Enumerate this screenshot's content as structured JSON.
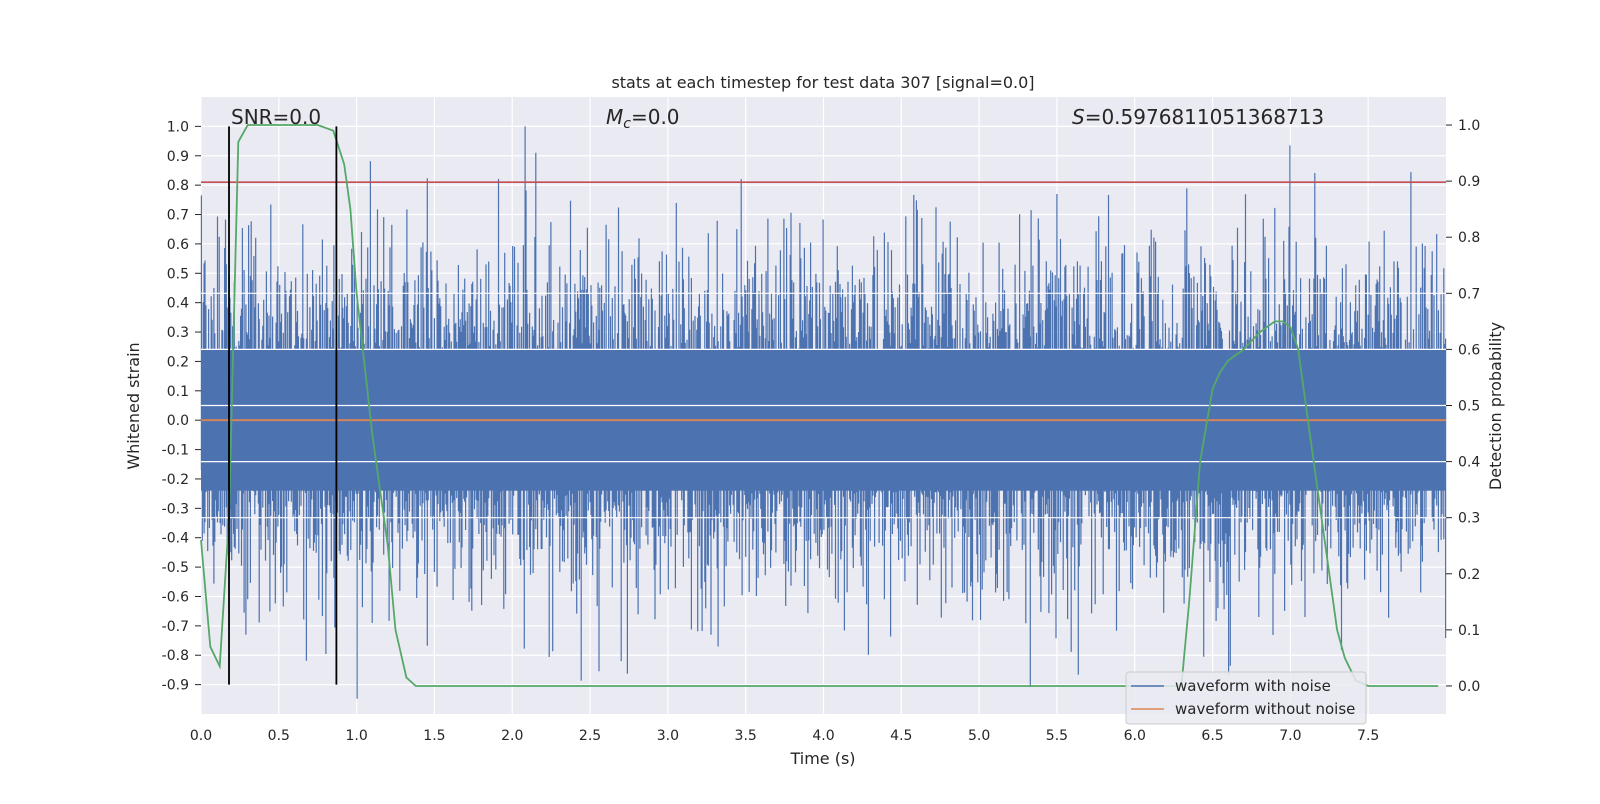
{
  "chart_data": {
    "type": "line",
    "title": "stats at each timestep for test data 307 [signal=0.0]",
    "xlabel": "Time (s)",
    "ylabel_left": "Whitened strain",
    "ylabel_right": "Detection probability",
    "xlim": [
      0.0,
      8.0
    ],
    "ylim_left": [
      -1.0,
      1.1
    ],
    "ylim_right": [
      -0.05,
      1.05
    ],
    "x_ticks": [
      "0.0",
      "0.5",
      "1.0",
      "1.5",
      "2.0",
      "2.5",
      "3.0",
      "3.5",
      "4.0",
      "4.5",
      "5.0",
      "5.5",
      "6.0",
      "6.5",
      "7.0",
      "7.5"
    ],
    "y_left_ticks": [
      "1.0",
      "0.9",
      "0.8",
      "0.7",
      "0.6",
      "0.5",
      "0.4",
      "0.3",
      "0.2",
      "0.1",
      "0.0",
      "-0.1",
      "-0.2",
      "-0.3",
      "-0.4",
      "-0.5",
      "-0.6",
      "-0.7",
      "-0.8",
      "-0.9"
    ],
    "y_right_ticks": [
      "1.0",
      "0.9",
      "0.8",
      "0.7",
      "0.6",
      "0.5",
      "0.4",
      "0.3",
      "0.2",
      "0.1",
      "0.0"
    ],
    "annotations": {
      "snr": "SNR=0.0",
      "mc_symbol": "M",
      "mc_sub": "c",
      "mc_rest": "=0.0",
      "s_symbol": "S",
      "s_rest": "=0.5976811051368713"
    },
    "threshold_y_left": 0.81,
    "vlines_x": [
      0.18,
      0.87
    ],
    "legend": {
      "position": "lower-right",
      "entries": [
        {
          "label": "waveform with noise",
          "color": "#4c72b0"
        },
        {
          "label": "waveform without noise",
          "color": "#dd8452"
        }
      ]
    },
    "series": [
      {
        "name": "waveform with noise",
        "axis": "left",
        "color": "#4c72b0",
        "style": "noise",
        "seed": 307,
        "noise_scale": 0.3
      },
      {
        "name": "waveform without noise",
        "axis": "left",
        "color": "#dd8452",
        "style": "line",
        "x": [
          0.0,
          8.0
        ],
        "y": [
          0.0,
          0.0
        ]
      },
      {
        "axis": "right",
        "color": "#55a868",
        "style": "line",
        "x": [
          0.0,
          0.06,
          0.12,
          0.18,
          0.24,
          0.3,
          0.45,
          0.6,
          0.75,
          0.85,
          0.92,
          0.96,
          1.0,
          1.1,
          1.2,
          1.25,
          1.32,
          1.38,
          1.45,
          2.0,
          3.0,
          4.0,
          5.0,
          6.0,
          6.3,
          6.35,
          6.42,
          6.5,
          6.55,
          6.6,
          6.7,
          6.8,
          6.9,
          6.95,
          7.0,
          7.05,
          7.1,
          7.2,
          7.3,
          7.35,
          7.42,
          7.5,
          7.7,
          7.95
        ],
        "y": [
          0.26,
          0.07,
          0.035,
          0.3,
          0.97,
          1.0,
          1.0,
          1.0,
          1.0,
          0.99,
          0.93,
          0.85,
          0.7,
          0.45,
          0.25,
          0.1,
          0.015,
          0.0,
          0.0,
          0.0,
          0.0,
          0.0,
          0.0,
          0.0,
          0.0,
          0.15,
          0.4,
          0.53,
          0.56,
          0.58,
          0.6,
          0.63,
          0.65,
          0.65,
          0.64,
          0.6,
          0.5,
          0.3,
          0.1,
          0.05,
          0.01,
          0.0,
          0.0,
          0.0
        ]
      }
    ]
  }
}
